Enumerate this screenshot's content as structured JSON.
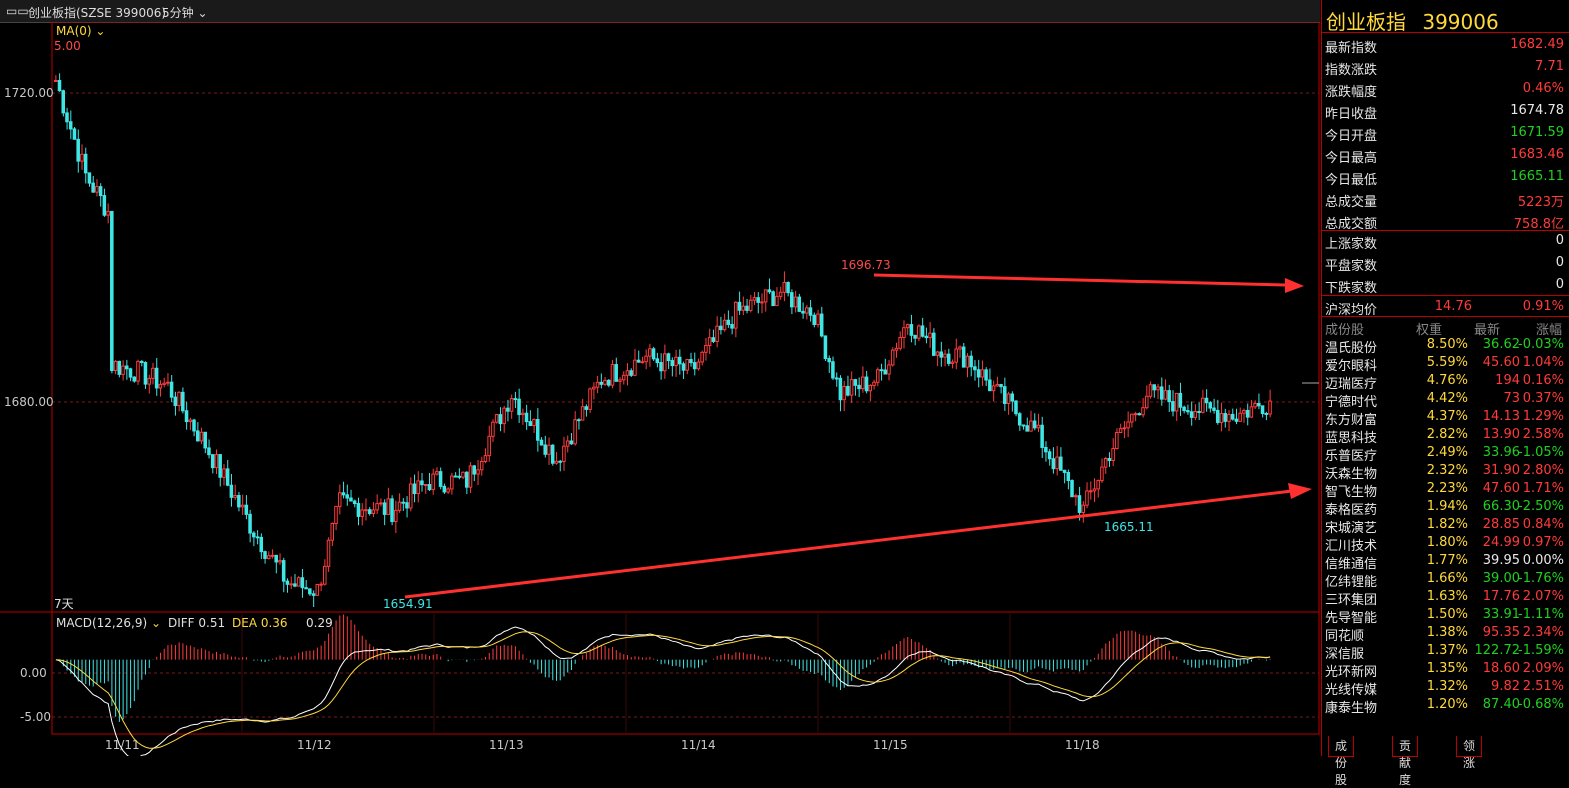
{
  "header": {
    "title": "创业板指(SZSE 399006)",
    "period": "5分钟",
    "ma_label": "MA(0)",
    "ma_value": "5.00"
  },
  "axis": {
    "y_ticks": [
      "1720.00",
      "1680.00"
    ],
    "x_ticks": [
      "11/11",
      "11/12",
      "11/13",
      "11/14",
      "11/15",
      "11/18"
    ],
    "range_label": "7天",
    "macd_ticks": [
      "0.00",
      "-5.00"
    ]
  },
  "annotations": {
    "high": "1696.73",
    "low_left": "1654.91",
    "low_right": "1665.11"
  },
  "macd": {
    "label": "MACD(12,26,9)",
    "diff_label": "DIFF 0.51",
    "dea_label": "DEA 0.36",
    "macd_value": "0.29"
  },
  "quote": {
    "name": "创业板指",
    "code": "399006",
    "rows": [
      {
        "k": "最新指数",
        "v": "1682.49",
        "c": "red"
      },
      {
        "k": "指数涨跌",
        "v": "7.71",
        "c": "red"
      },
      {
        "k": "涨跌幅度",
        "v": "0.46%",
        "c": "red"
      },
      {
        "k": "昨日收盘",
        "v": "1674.78",
        "c": "white"
      },
      {
        "k": "今日开盘",
        "v": "1671.59",
        "c": "green"
      },
      {
        "k": "今日最高",
        "v": "1683.46",
        "c": "red"
      },
      {
        "k": "今日最低",
        "v": "1665.11",
        "c": "green"
      },
      {
        "k": "总成交量",
        "v": "5223万",
        "c": "red"
      },
      {
        "k": "总成交额",
        "v": "758.8亿",
        "c": "red"
      }
    ],
    "breadth": [
      {
        "k": "上涨家数",
        "v": "0"
      },
      {
        "k": "平盘家数",
        "v": "0"
      },
      {
        "k": "下跌家数",
        "v": "0"
      }
    ],
    "avg": {
      "k": "沪深均价",
      "v1": "14.76",
      "v2": "0.91%"
    }
  },
  "constituents": {
    "headers": [
      "成份股",
      "权重",
      "最新",
      "涨幅"
    ],
    "rows": [
      [
        "温氏股份",
        "8.50%",
        "36.62",
        "-0.03%",
        "g"
      ],
      [
        "爱尔眼科",
        "5.59%",
        "45.60",
        "1.04%",
        "r"
      ],
      [
        "迈瑞医疗",
        "4.76%",
        "194",
        "0.16%",
        "r"
      ],
      [
        "宁德时代",
        "4.42%",
        "73",
        "0.37%",
        "r"
      ],
      [
        "东方财富",
        "4.37%",
        "14.13",
        "1.29%",
        "r"
      ],
      [
        "蓝思科技",
        "2.82%",
        "13.90",
        "2.58%",
        "r"
      ],
      [
        "乐普医疗",
        "2.49%",
        "33.96",
        "-1.05%",
        "g"
      ],
      [
        "沃森生物",
        "2.32%",
        "31.90",
        "2.80%",
        "r"
      ],
      [
        "智飞生物",
        "2.23%",
        "47.60",
        "1.71%",
        "r"
      ],
      [
        "泰格医药",
        "1.94%",
        "66.30",
        "-2.50%",
        "g"
      ],
      [
        "宋城演艺",
        "1.82%",
        "28.85",
        "0.84%",
        "r"
      ],
      [
        "汇川技术",
        "1.80%",
        "24.99",
        "0.97%",
        "r"
      ],
      [
        "信维通信",
        "1.77%",
        "39.95",
        "0.00%",
        "w"
      ],
      [
        "亿纬锂能",
        "1.66%",
        "39.00",
        "-1.76%",
        "g"
      ],
      [
        "三环集团",
        "1.63%",
        "17.76",
        "2.07%",
        "r"
      ],
      [
        "先导智能",
        "1.50%",
        "33.91",
        "-1.11%",
        "g"
      ],
      [
        "同花顺",
        "1.38%",
        "95.35",
        "2.34%",
        "r"
      ],
      [
        "深信服",
        "1.37%",
        "122.72",
        "-1.59%",
        "g"
      ],
      [
        "光环新网",
        "1.35%",
        "18.60",
        "2.09%",
        "r"
      ],
      [
        "光线传媒",
        "1.32%",
        "9.82",
        "2.51%",
        "r"
      ],
      [
        "康泰生物",
        "1.20%",
        "87.40",
        "-0.68%",
        "g"
      ]
    ]
  },
  "tabs": [
    "成份股",
    "贡献度",
    "领涨"
  ],
  "chart_data": {
    "type": "candlestick",
    "price_anchors": [
      [
        0,
        1725
      ],
      [
        8,
        1712
      ],
      [
        14,
        1707
      ],
      [
        15,
        1686
      ],
      [
        22,
        1685
      ],
      [
        30,
        1683
      ],
      [
        40,
        1675
      ],
      [
        52,
        1664
      ],
      [
        62,
        1656
      ],
      [
        70,
        1655
      ],
      [
        76,
        1667
      ],
      [
        90,
        1666
      ],
      [
        100,
        1670
      ],
      [
        110,
        1670
      ],
      [
        122,
        1682
      ],
      [
        134,
        1673
      ],
      [
        146,
        1684
      ],
      [
        158,
        1687
      ],
      [
        170,
        1685
      ],
      [
        182,
        1693
      ],
      [
        194,
        1696
      ],
      [
        203,
        1693
      ],
      [
        210,
        1682
      ],
      [
        220,
        1684
      ],
      [
        228,
        1692
      ],
      [
        236,
        1688
      ],
      [
        244,
        1687
      ],
      [
        252,
        1682
      ],
      [
        262,
        1677
      ],
      [
        275,
        1666
      ],
      [
        282,
        1674
      ],
      [
        292,
        1682
      ],
      [
        305,
        1680
      ],
      [
        316,
        1679
      ],
      [
        325,
        1681
      ]
    ],
    "y_range": [
      1652,
      1733
    ],
    "macd_range": [
      -7.5,
      4
    ]
  }
}
